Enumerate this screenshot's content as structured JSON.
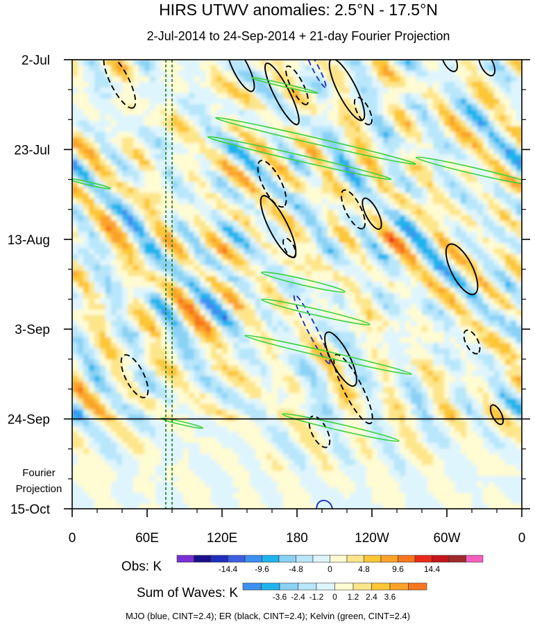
{
  "chart_data": {
    "type": "heatmap",
    "title": "HIRS UTWV anomalies: 2.5°N - 17.5°N",
    "subtitle": "2-Jul-2014 to 24-Sep-2014 + 21-day Fourier Projection",
    "x_ticks": [
      "0",
      "60E",
      "120E",
      "180",
      "120W",
      "60W",
      "0"
    ],
    "x_tick_lon": [
      0,
      60,
      120,
      180,
      240,
      300,
      360
    ],
    "xlim": [
      0,
      360
    ],
    "y_ticks": [
      "2-Jul",
      "23-Jul",
      "13-Aug",
      "3-Sep",
      "24-Sep",
      "15-Oct"
    ],
    "y_tick_day": [
      0,
      21,
      42,
      63,
      84,
      105
    ],
    "ylim_days": [
      0,
      105
    ],
    "observation_end_day": 84,
    "fourier_label": [
      "Fourier",
      "Projection"
    ],
    "reference_lines_lon": [
      75,
      80
    ],
    "obs_legend": {
      "title": "Obs: K",
      "labels": [
        "-14.4",
        "-9.6",
        "-4.8",
        "0",
        "4.8",
        "9.6",
        "14.4"
      ],
      "colors": [
        "#7a2fd6",
        "#1a0f8c",
        "#1f2fbf",
        "#3b5fe0",
        "#3d8ff0",
        "#1fb4ee",
        "#8ad2f5",
        "#b8e6fb",
        "#dff5fd",
        "#fffbd2",
        "#fde58a",
        "#fcc636",
        "#fba329",
        "#f7761e",
        "#ea2a1a",
        "#c4161c",
        "#9e2a2a",
        "#f55fc0"
      ]
    },
    "waves_legend": {
      "title": "Sum of Waves: K",
      "labels": [
        "-3.6",
        "-2.4",
        "-1.2",
        "0",
        "1.2",
        "2.4",
        "3.6"
      ],
      "colors": [
        "#3d8ff0",
        "#1fb4ee",
        "#8ad2f5",
        "#b8e6fb",
        "#dff5fd",
        "#fffbd2",
        "#fde58a",
        "#fcc636",
        "#fba329",
        "#f7761e"
      ]
    },
    "footer": "MJO (blue, CINT=2.4); ER (black, CINT=2.4); Kelvin (green, CINT=2.4)",
    "contours": [
      {
        "wave": "MJO",
        "color": "#1f2fbf",
        "dashed": true,
        "lon": 195,
        "day": 2,
        "len": 10,
        "wid": 2
      },
      {
        "wave": "MJO",
        "color": "#1f2fbf",
        "dashed": true,
        "lon": 192,
        "day": 63,
        "len": 18,
        "wid": 3
      },
      {
        "wave": "MJO",
        "color": "#1f2fbf",
        "dashed": false,
        "lon": 202,
        "day": 105,
        "len": 4,
        "wid": 5
      },
      {
        "wave": "ER",
        "color": "#000000",
        "dashed": true,
        "lon": 38,
        "day": 5,
        "len": 14,
        "wid": 6
      },
      {
        "wave": "ER",
        "color": "#000000",
        "dashed": false,
        "lon": 135,
        "day": 2,
        "len": 12,
        "wid": 5
      },
      {
        "wave": "ER",
        "color": "#000000",
        "dashed": false,
        "lon": 168,
        "day": 8,
        "len": 16,
        "wid": 5
      },
      {
        "wave": "ER",
        "color": "#000000",
        "dashed": true,
        "lon": 180,
        "day": 6,
        "len": 10,
        "wid": 4
      },
      {
        "wave": "ER",
        "color": "#000000",
        "dashed": false,
        "lon": 220,
        "day": 7,
        "len": 16,
        "wid": 6
      },
      {
        "wave": "ER",
        "color": "#000000",
        "dashed": true,
        "lon": 233,
        "day": 12,
        "len": 7,
        "wid": 4
      },
      {
        "wave": "ER",
        "color": "#000000",
        "dashed": false,
        "lon": 302,
        "day": 0,
        "len": 6,
        "wid": 4
      },
      {
        "wave": "ER",
        "color": "#000000",
        "dashed": false,
        "lon": 332,
        "day": 1,
        "len": 6,
        "wid": 4
      },
      {
        "wave": "ER",
        "color": "#000000",
        "dashed": true,
        "lon": 160,
        "day": 29,
        "len": 12,
        "wid": 6
      },
      {
        "wave": "ER",
        "color": "#000000",
        "dashed": false,
        "lon": 165,
        "day": 39,
        "len": 16,
        "wid": 6
      },
      {
        "wave": "ER",
        "color": "#000000",
        "dashed": true,
        "lon": 225,
        "day": 35,
        "len": 10,
        "wid": 5
      },
      {
        "wave": "ER",
        "color": "#000000",
        "dashed": false,
        "lon": 240,
        "day": 36,
        "len": 8,
        "wid": 4
      },
      {
        "wave": "ER",
        "color": "#000000",
        "dashed": true,
        "lon": 174,
        "day": 44,
        "len": 5,
        "wid": 3
      },
      {
        "wave": "ER",
        "color": "#000000",
        "dashed": false,
        "lon": 312,
        "day": 49,
        "len": 13,
        "wid": 7
      },
      {
        "wave": "ER",
        "color": "#000000",
        "dashed": true,
        "lon": 320,
        "day": 66,
        "len": 6,
        "wid": 4
      },
      {
        "wave": "ER",
        "color": "#000000",
        "dashed": false,
        "lon": 215,
        "day": 70,
        "len": 14,
        "wid": 6
      },
      {
        "wave": "ER",
        "color": "#000000",
        "dashed": true,
        "lon": 225,
        "day": 77,
        "len": 18,
        "wid": 6
      },
      {
        "wave": "ER",
        "color": "#000000",
        "dashed": true,
        "lon": 50,
        "day": 74,
        "len": 11,
        "wid": 6
      },
      {
        "wave": "ER",
        "color": "#000000",
        "dashed": true,
        "lon": 198,
        "day": 87,
        "len": 8,
        "wid": 5
      },
      {
        "wave": "ER",
        "color": "#000000",
        "dashed": false,
        "lon": 340,
        "day": 83,
        "len": 5,
        "wid": 3
      },
      {
        "wave": "Kelvin",
        "color": "#39d23c",
        "dashed": false,
        "lon": 195,
        "day": 19,
        "len": 48,
        "wid": 2
      },
      {
        "wave": "Kelvin",
        "color": "#39d23c",
        "dashed": false,
        "lon": 182,
        "day": 23,
        "len": 44,
        "wid": 2
      },
      {
        "wave": "Kelvin",
        "color": "#39d23c",
        "dashed": false,
        "lon": 322,
        "day": 26,
        "len": 28,
        "wid": 2
      },
      {
        "wave": "Kelvin",
        "color": "#39d23c",
        "dashed": false,
        "lon": 185,
        "day": 52,
        "len": 20,
        "wid": 2
      },
      {
        "wave": "Kelvin",
        "color": "#39d23c",
        "dashed": false,
        "lon": 195,
        "day": 59,
        "len": 26,
        "wid": 2
      },
      {
        "wave": "Kelvin",
        "color": "#39d23c",
        "dashed": false,
        "lon": 205,
        "day": 69,
        "len": 40,
        "wid": 2
      },
      {
        "wave": "Kelvin",
        "color": "#39d23c",
        "dashed": false,
        "lon": 215,
        "day": 86,
        "len": 28,
        "wid": 2
      },
      {
        "wave": "Kelvin",
        "color": "#39d23c",
        "dashed": false,
        "lon": 170,
        "day": 6,
        "len": 16,
        "wid": 1
      },
      {
        "wave": "Kelvin",
        "color": "#39d23c",
        "dashed": false,
        "lon": 14,
        "day": 29,
        "len": 10,
        "wid": 1
      },
      {
        "wave": "Kelvin",
        "color": "#39d23c",
        "dashed": false,
        "lon": 88,
        "day": 85,
        "len": 10,
        "wid": 1
      }
    ],
    "field": {
      "note": "Stylized representation of gridded anomaly field (K); dominant eastward-propagating diagonal streaks.",
      "obs_std_K": 4.8,
      "projection_std_K": 1.2
    }
  }
}
